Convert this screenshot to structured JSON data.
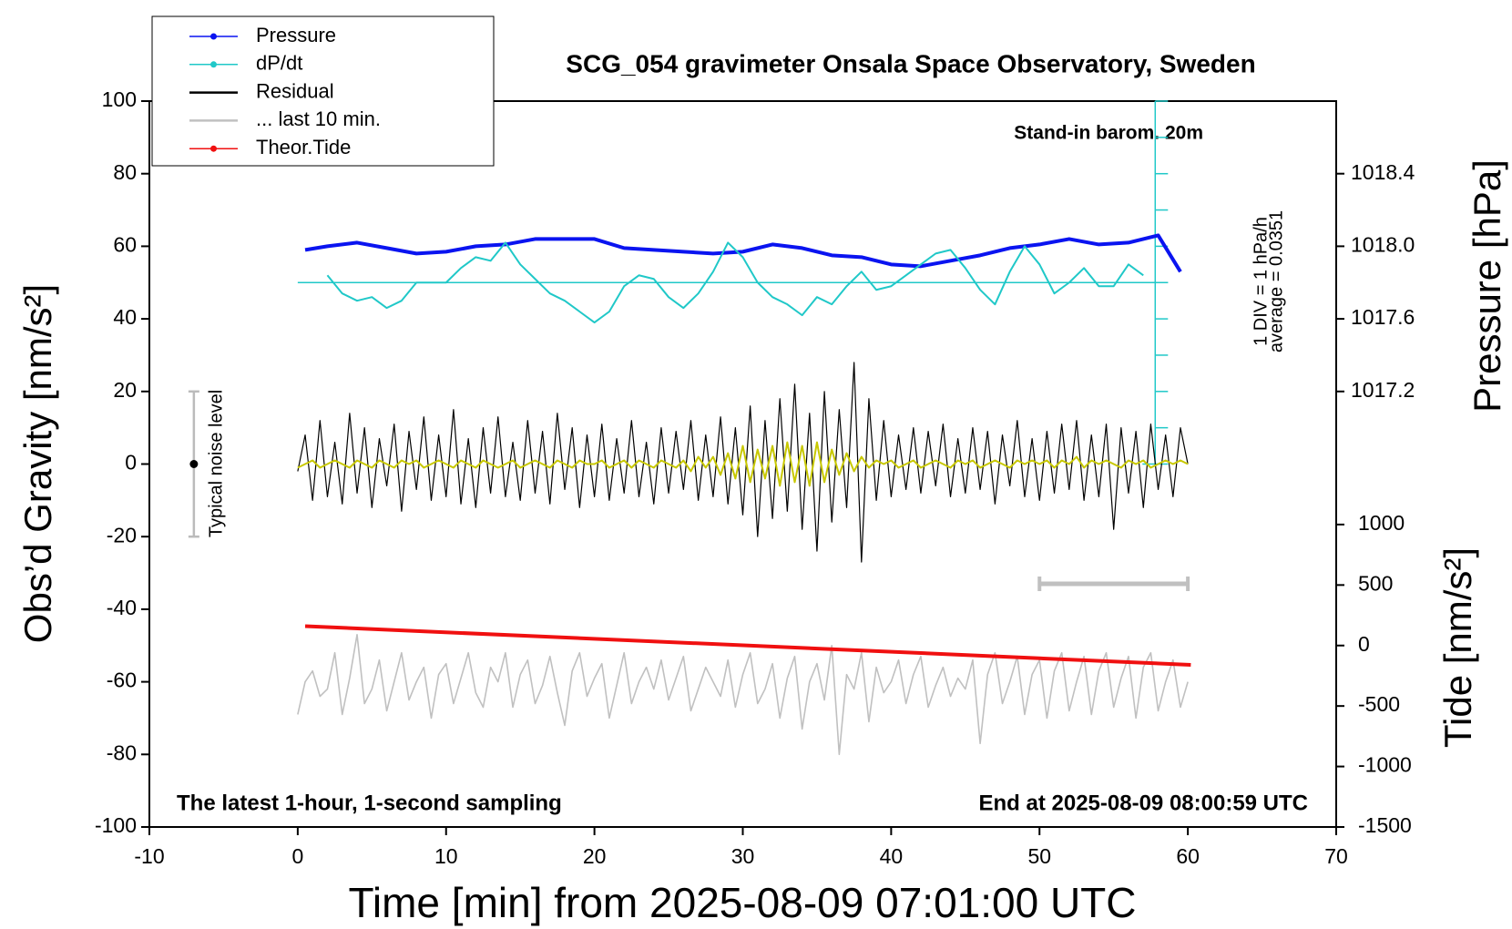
{
  "chart_data": {
    "type": "line",
    "title": "SCG_054 gravimeter Onsala Space Observatory, Sweden",
    "xlabel": "Time [min] from 2025-08-09 07:01:00 UTC",
    "ylabel": "Obs’d Gravity [nm/s²]",
    "y2label": "Pressure [hPa]",
    "y3label": "Tide [nm/s²]",
    "annotations": {
      "barometer": "Stand-in barom. 20m",
      "div": "1 DIV = 1 hPa/h",
      "average": "average = 0.0351",
      "sampling": "The latest 1-hour, 1-second sampling",
      "end": "End at 2025-08-09 08:00:59 UTC"
    },
    "xlim": [
      -10,
      70
    ],
    "xticks": [
      -10,
      0,
      10,
      20,
      30,
      40,
      50,
      60,
      70
    ],
    "ylim": [
      -100,
      100
    ],
    "yticks": [
      -100,
      -80,
      -60,
      -40,
      -20,
      0,
      20,
      40,
      60,
      80,
      100
    ],
    "y2lim": [
      1014.8,
      1018.8
    ],
    "y2ticks": [
      1017.2,
      1017.6,
      {
        "value": 1018,
        "label": "1018.0"
      },
      1018.4
    ],
    "y3lim": [
      -1500,
      4500
    ],
    "y3ticks": [
      -1500,
      -1000,
      -500,
      0,
      500,
      1000
    ],
    "dpdt_lim": [
      -5,
      5
    ],
    "dpdt_ticks": [
      -5,
      -4,
      -3,
      -2,
      -1,
      0,
      1,
      2,
      3,
      4,
      5
    ],
    "x": [
      0,
      0.5,
      1,
      1.5,
      2,
      2.5,
      3,
      3.5,
      4,
      4.5,
      5,
      5.5,
      6,
      6.5,
      7,
      7.5,
      8,
      8.5,
      9,
      9.5,
      10,
      10.5,
      11,
      11.5,
      12,
      12.5,
      13,
      13.5,
      14,
      14.5,
      15,
      15.5,
      16,
      16.5,
      17,
      17.5,
      18,
      18.5,
      19,
      19.5,
      20,
      20.5,
      21,
      21.5,
      22,
      22.5,
      23,
      23.5,
      24,
      24.5,
      25,
      25.5,
      26,
      26.5,
      27,
      27.5,
      28,
      28.5,
      29,
      29.5,
      30,
      30.5,
      31,
      31.5,
      32,
      32.5,
      33,
      33.5,
      34,
      34.5,
      35,
      35.5,
      36,
      36.5,
      37,
      37.5,
      38,
      38.5,
      39,
      39.5,
      40,
      40.5,
      41,
      41.5,
      42,
      42.5,
      43,
      43.5,
      44,
      44.5,
      45,
      45.5,
      46,
      46.5,
      47,
      47.5,
      48,
      48.5,
      49,
      49.5,
      50,
      50.5,
      51,
      51.5,
      52,
      52.5,
      53,
      53.5,
      54,
      54.5,
      55,
      55.5,
      56,
      56.5,
      57,
      57.5,
      58,
      58.5,
      59,
      59.5,
      60
    ],
    "series": [
      {
        "name": "Pressure",
        "color": "#0a14f0",
        "axis": "y2",
        "marker": true,
        "width": 4,
        "x": [
          0.5,
          2,
          4,
          6,
          8,
          10,
          12,
          14,
          16,
          18,
          20,
          22,
          24,
          26,
          28,
          30,
          32,
          34,
          36,
          38,
          40,
          42,
          44,
          46,
          48,
          50,
          52,
          54,
          56,
          58,
          59.5
        ],
        "values": [
          1017.98,
          1018.0,
          1018.02,
          1017.99,
          1017.96,
          1017.97,
          1018.0,
          1018.01,
          1018.04,
          1018.04,
          1018.04,
          1017.99,
          1017.98,
          1017.97,
          1017.96,
          1017.97,
          1018.01,
          1017.99,
          1017.95,
          1017.94,
          1017.9,
          1017.89,
          1017.92,
          1017.95,
          1017.99,
          1018.01,
          1018.04,
          1018.01,
          1018.02,
          1018.06,
          1017.86
        ]
      },
      {
        "name": "dP/dt",
        "color": "#20c8c8",
        "axis": "dpdt",
        "marker": true,
        "width": 2,
        "x": [
          2,
          3,
          4,
          5,
          6,
          7,
          8,
          9,
          10,
          11,
          12,
          13,
          14,
          15,
          16,
          17,
          18,
          19,
          20,
          21,
          22,
          23,
          24,
          25,
          26,
          27,
          28,
          29,
          30,
          31,
          32,
          33,
          34,
          35,
          36,
          37,
          38,
          39,
          40,
          41,
          42,
          43,
          44,
          45,
          46,
          47,
          48,
          49,
          50,
          51,
          52,
          53,
          54,
          55,
          56,
          57
        ],
        "values": [
          0.2,
          -0.3,
          -0.5,
          -0.4,
          -0.7,
          -0.5,
          0,
          0,
          0,
          0.4,
          0.7,
          0.6,
          1.1,
          0.5,
          0.1,
          -0.3,
          -0.5,
          -0.8,
          -1.1,
          -0.8,
          -0.1,
          0.2,
          0.1,
          -0.4,
          -0.7,
          -0.3,
          0.3,
          1.1,
          0.7,
          0,
          -0.4,
          -0.6,
          -0.9,
          -0.4,
          -0.6,
          -0.1,
          0.3,
          -0.2,
          -0.1,
          0.2,
          0.5,
          0.8,
          0.9,
          0.4,
          -0.2,
          -0.6,
          0.3,
          1.0,
          0.5,
          -0.3,
          0,
          0.4,
          -0.1,
          -0.1,
          0.5,
          0.2
        ]
      },
      {
        "name": "Residual",
        "color": "#000000",
        "axis": "y",
        "marker": false,
        "width": 1.2,
        "values": [
          -2,
          8,
          -10,
          12,
          -9,
          6,
          -11,
          14,
          -8,
          10,
          -12,
          7,
          -6,
          11,
          -13,
          9,
          -7,
          13,
          -10,
          8,
          -9,
          15,
          -11,
          7,
          -12,
          10,
          -8,
          13,
          -9,
          6,
          -10,
          12,
          -8,
          9,
          -11,
          14,
          -7,
          10,
          -12,
          8,
          -9,
          11,
          -10,
          7,
          -8,
          12,
          -9,
          6,
          -11,
          10,
          -8,
          9,
          -7,
          12,
          -10,
          8,
          -9,
          13,
          -11,
          10,
          -14,
          16,
          -20,
          12,
          -15,
          18,
          -13,
          22,
          -18,
          14,
          -24,
          20,
          -16,
          15,
          -12,
          28,
          -27,
          18,
          -10,
          12,
          -9,
          8,
          -7,
          10,
          -8,
          9,
          -6,
          11,
          -9,
          7,
          -8,
          10,
          -7,
          9,
          -11,
          8,
          -6,
          12,
          -9,
          7,
          -10,
          9,
          -8,
          11,
          -7,
          12,
          -10,
          8,
          -9,
          11,
          -18,
          10,
          -8,
          9,
          -12,
          11,
          -7,
          8,
          -9,
          10,
          0
        ]
      },
      {
        "name": "... last 10 min.",
        "color": "#c0c0c0",
        "axis": "y",
        "marker": false,
        "width": 1.6,
        "values": [
          -69,
          -60,
          -57,
          -64,
          -62,
          -52,
          -69,
          -59,
          -47,
          -66,
          -62,
          -54,
          -68,
          -60,
          -52,
          -65,
          -60,
          -56,
          -70,
          -58,
          -55,
          -66,
          -59,
          -52,
          -63,
          -67,
          -56,
          -60,
          -52,
          -67,
          -58,
          -54,
          -66,
          -61,
          -53,
          -63,
          -72,
          -57,
          -52,
          -64,
          -59,
          -55,
          -70,
          -61,
          -52,
          -66,
          -60,
          -56,
          -62,
          -54,
          -65,
          -59,
          -53,
          -68,
          -62,
          -56,
          -60,
          -64,
          -54,
          -67,
          -58,
          -52,
          -66,
          -62,
          -55,
          -70,
          -59,
          -53,
          -73,
          -60,
          -55,
          -65,
          -50,
          -80,
          -58,
          -62,
          -52,
          -71,
          -56,
          -63,
          -60,
          -54,
          -66,
          -58,
          -53,
          -67,
          -61,
          -56,
          -64,
          -59,
          -62,
          -54,
          -77,
          -58,
          -52,
          -66,
          -60,
          -53,
          -69,
          -58,
          -54,
          -70,
          -57,
          -52,
          -68,
          -60,
          -53,
          -69,
          -57,
          -52,
          -67,
          -59,
          -53,
          -70,
          -56,
          -52,
          -68,
          -60,
          -54,
          -67,
          -60
        ]
      },
      {
        "name": "Theor.Tide",
        "color": "#f01010",
        "axis": "y3",
        "marker": true,
        "width": 4,
        "x": [
          0.5,
          60.2
        ],
        "values": [
          160,
          -160
        ]
      }
    ],
    "filtered": {
      "color": "#c8c800",
      "width": 2,
      "values": [
        -1,
        0,
        1,
        -1,
        0,
        1,
        0,
        -1,
        1,
        0,
        -1,
        1,
        0,
        -1,
        1,
        0,
        1,
        -1,
        0,
        1,
        0,
        -1,
        1,
        0,
        -1,
        1,
        0,
        -1,
        0,
        1,
        -1,
        0,
        1,
        0,
        -1,
        1,
        0,
        -1,
        1,
        0,
        0,
        1,
        -1,
        0,
        1,
        -1,
        1,
        0,
        -1,
        1,
        0,
        -1,
        1,
        -2,
        2,
        -1,
        2,
        -3,
        3,
        -4,
        5,
        -5,
        4,
        -4,
        5,
        -6,
        6,
        -5,
        5,
        -6,
        6,
        -5,
        4,
        -3,
        3,
        -2,
        2,
        -1,
        1,
        0,
        1,
        -1,
        0,
        1,
        -1,
        0,
        1,
        0,
        -1,
        1,
        0,
        1,
        -1,
        0,
        1,
        0,
        -1,
        1,
        0,
        1,
        0,
        1,
        -1,
        1,
        0,
        2,
        -1,
        1,
        0,
        1,
        0,
        -1,
        1,
        0,
        1,
        -1,
        0,
        1,
        0,
        1,
        0
      ]
    },
    "noise_level": {
      "x": -7,
      "value": 0,
      "error": 20,
      "label": "Typical noise level"
    },
    "last10_bar": {
      "x": [
        50,
        60
      ],
      "y": -33
    }
  }
}
